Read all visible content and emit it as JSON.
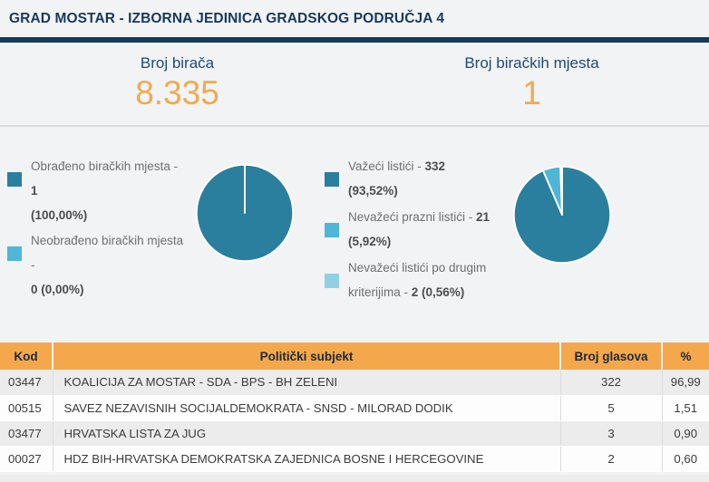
{
  "title": "GRAD MOSTAR - IZBORNA JEDINICA GRADSKOG PODRUČJA 4",
  "stats": {
    "voters_label": "Broj birača",
    "voters_value": "8.335",
    "stations_label": "Broj biračkih mjesta",
    "stations_value": "1"
  },
  "colors": {
    "navy": "#16395e",
    "orange_header": "#f5a74b",
    "orange_value": "#efaa52",
    "teal_dark": "#2b7f9e",
    "blue_medium": "#4fb6d8",
    "blue_light": "#8fd0e6"
  },
  "chart_data": [
    {
      "type": "pie",
      "title": "Obrada biračkih mjesta",
      "labels": [
        "Obrađeno biračkih mjesta",
        "Neobrađeno biračkih mjesta"
      ],
      "counts": [
        1,
        0
      ],
      "values": [
        100.0,
        0.0
      ],
      "colors": [
        "#2b7f9e",
        "#4fb6d8"
      ],
      "legend_position": "left"
    },
    {
      "type": "pie",
      "title": "Listići",
      "labels": [
        "Važeći listići",
        "Nevažeći prazni listići",
        "Nevažeći listići po drugim kriterijima"
      ],
      "counts": [
        332,
        21,
        2
      ],
      "values": [
        93.52,
        5.92,
        0.56
      ],
      "colors": [
        "#2b7f9e",
        "#4fb6d8",
        "#8fd0e6"
      ],
      "legend_position": "left"
    }
  ],
  "legend_left": {
    "items": [
      {
        "l1n": "Obrađeno biračkih mjesta - ",
        "l1b": "1",
        "l2n": "",
        "l2b": "(100,00%)"
      },
      {
        "l1n": "Neobrađeno biračkih mjesta -",
        "l1b": "",
        "l2n": "",
        "l2b": "0 (0,00%)"
      }
    ]
  },
  "legend_right": {
    "items": [
      {
        "l1n": "Važeći listići - ",
        "l1b": "332",
        "l2n": "",
        "l2b": "(93,52%)"
      },
      {
        "l1n": "Nevažeći prazni listići - ",
        "l1b": "21",
        "l2n": "",
        "l2b": "(5,92%)"
      },
      {
        "l1n": "Nevažeći listići po drugim",
        "l1b": "",
        "l2n": "kriterijima - ",
        "l2b": "2 (0,56%)"
      }
    ]
  },
  "table": {
    "headers": [
      "Kod",
      "Politički subjekt",
      "Broj glasova",
      "%"
    ],
    "rows": [
      [
        "03447",
        "KOALICIJA ZA MOSTAR - SDA - BPS - BH ZELENI",
        "322",
        "96,99"
      ],
      [
        "00515",
        "SAVEZ NEZAVISNIH SOCIJALDEMOKRATA - SNSD - MILORAD DODIK",
        "5",
        "1,51"
      ],
      [
        "03477",
        "HRVATSKA LISTA ZA JUG",
        "3",
        "0,90"
      ],
      [
        "00027",
        "HDZ BIH-HRVATSKA DEMOKRATSKA ZAJEDNICA BOSNE I HERCEGOVINE",
        "2",
        "0,60"
      ]
    ]
  }
}
